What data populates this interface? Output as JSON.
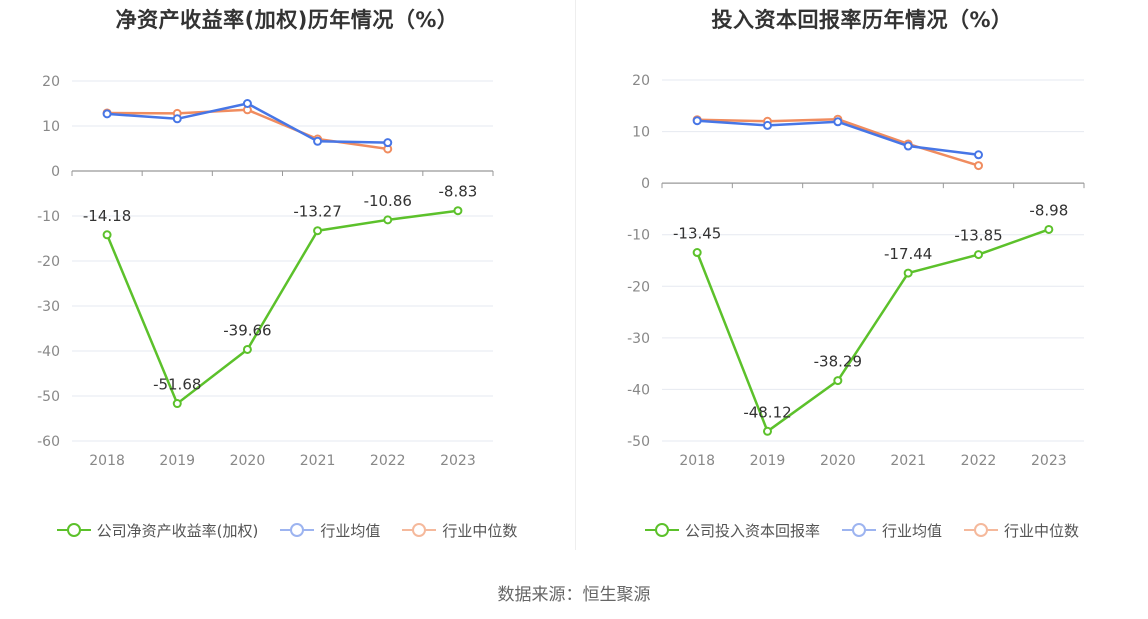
{
  "source_text": "数据来源：恒生聚源",
  "colors": {
    "company": "#5cc12b",
    "avg": "#4776e6",
    "median": "#f08c5f",
    "grid": "#e6e9f0",
    "axis": "#999999"
  },
  "chart_data": [
    {
      "type": "line",
      "title": "净资产收益率(加权)历年情况（%）",
      "categories": [
        "2018",
        "2019",
        "2020",
        "2021",
        "2022",
        "2023"
      ],
      "ylim": [
        -60,
        20
      ],
      "yticks": [
        20,
        10,
        0,
        -10,
        -20,
        -30,
        -40,
        -50,
        -60
      ],
      "grid": true,
      "legend_position": "bottom",
      "series": [
        {
          "name": "公司净资产收益率(加权)",
          "key": "company",
          "values": [
            -14.18,
            -51.68,
            -39.66,
            -13.27,
            -10.86,
            -8.83
          ],
          "labels": [
            "-14.18",
            "-51.68",
            "-39.66",
            "-13.27",
            "-10.86",
            "-8.83"
          ]
        },
        {
          "name": "行业均值",
          "key": "avg",
          "values": [
            12.7,
            11.6,
            15.0,
            6.6,
            6.3,
            null
          ]
        },
        {
          "name": "行业中位数",
          "key": "median",
          "values": [
            12.9,
            12.8,
            13.6,
            7.1,
            4.9,
            null
          ]
        }
      ]
    },
    {
      "type": "line",
      "title": "投入资本回报率历年情况（%）",
      "categories": [
        "2018",
        "2019",
        "2020",
        "2021",
        "2022",
        "2023"
      ],
      "ylim": [
        -50,
        20
      ],
      "yticks": [
        20,
        10,
        0,
        -10,
        -20,
        -30,
        -40,
        -50
      ],
      "grid": true,
      "legend_position": "bottom",
      "series": [
        {
          "name": "公司投入资本回报率",
          "key": "company",
          "values": [
            -13.45,
            -48.12,
            -38.29,
            -17.44,
            -13.85,
            -8.98
          ],
          "labels": [
            "-13.45",
            "-48.12",
            "-38.29",
            "-17.44",
            "-13.85",
            "-8.98"
          ]
        },
        {
          "name": "行业均值",
          "key": "avg",
          "values": [
            12.1,
            11.2,
            11.9,
            7.2,
            5.5,
            null
          ]
        },
        {
          "name": "行业中位数",
          "key": "median",
          "values": [
            12.3,
            12.0,
            12.4,
            7.6,
            3.4,
            null
          ]
        }
      ]
    }
  ]
}
